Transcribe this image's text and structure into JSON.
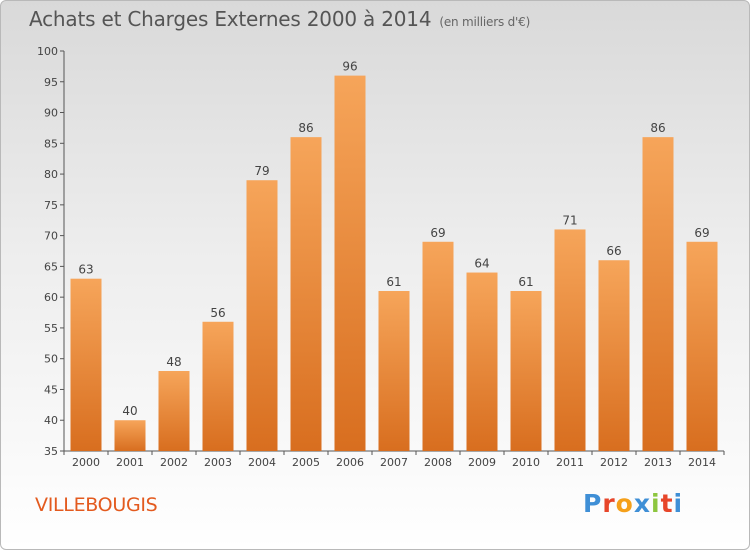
{
  "header": {
    "title": "Achats et Charges Externes 2000 à 2014",
    "subtitle": "(en milliers d'€)"
  },
  "footer": {
    "commune": "VILLEBOUGIS",
    "logo_text": "Proxiti"
  },
  "colors": {
    "bar_top": "#f6a55a",
    "bar_bottom": "#d86e1f",
    "commune_text": "#e35a1e",
    "logo_letters": [
      "#3f8fd6",
      "#e7462a",
      "#f5a01a",
      "#3f8fd6",
      "#8dc63f",
      "#e7462a",
      "#3f8fd6"
    ]
  },
  "chart_data": {
    "type": "bar",
    "categories": [
      "2000",
      "2001",
      "2002",
      "2003",
      "2004",
      "2005",
      "2006",
      "2007",
      "2008",
      "2009",
      "2010",
      "2011",
      "2012",
      "2013",
      "2014"
    ],
    "values": [
      63,
      40,
      48,
      56,
      79,
      86,
      96,
      61,
      69,
      64,
      61,
      71,
      66,
      86,
      69
    ],
    "ylim": [
      35,
      100
    ],
    "yticks": [
      35,
      40,
      45,
      50,
      55,
      60,
      65,
      70,
      75,
      80,
      85,
      90,
      95,
      100
    ],
    "grid": "none",
    "data_labels": true
  }
}
